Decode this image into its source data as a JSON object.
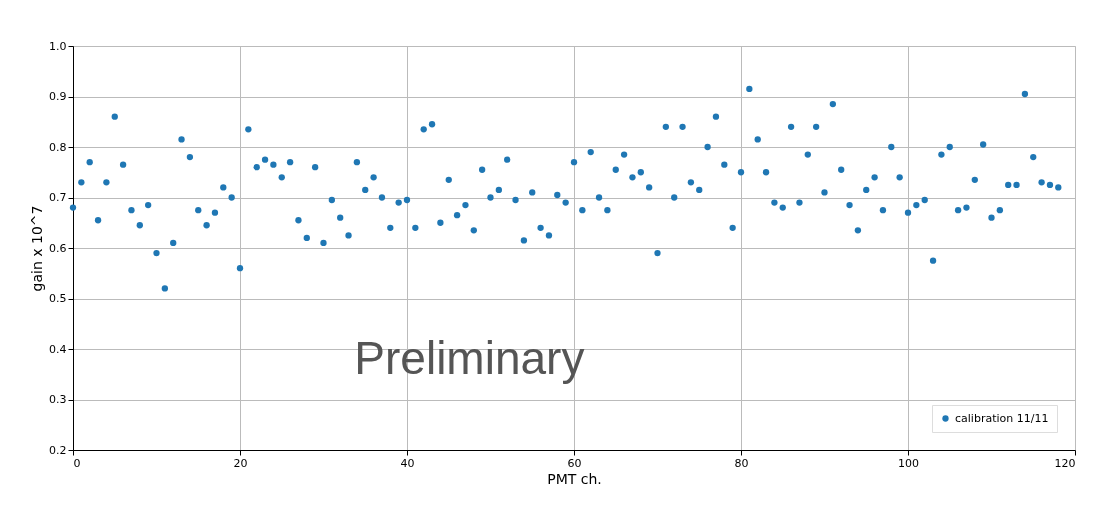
{
  "chart_data": {
    "type": "scatter",
    "xlabel": "PMT ch.",
    "ylabel": "gain x 10^7",
    "x": [
      0,
      1,
      2,
      3,
      4,
      5,
      6,
      7,
      8,
      9,
      10,
      11,
      12,
      13,
      14,
      15,
      16,
      17,
      18,
      19,
      20,
      21,
      22,
      23,
      24,
      25,
      26,
      27,
      28,
      29,
      30,
      31,
      32,
      33,
      34,
      35,
      36,
      37,
      38,
      39,
      40,
      41,
      42,
      43,
      44,
      45,
      46,
      47,
      48,
      49,
      50,
      51,
      52,
      53,
      54,
      55,
      56,
      57,
      58,
      59,
      60,
      61,
      62,
      63,
      64,
      65,
      66,
      67,
      68,
      69,
      70,
      71,
      72,
      73,
      74,
      75,
      76,
      77,
      78,
      79,
      80,
      81,
      82,
      83,
      84,
      85,
      86,
      87,
      88,
      89,
      90,
      91,
      92,
      93,
      94,
      95,
      96,
      97,
      98,
      99,
      100,
      101,
      102,
      103,
      104,
      105,
      106,
      107,
      108,
      109,
      110,
      111,
      112,
      113,
      114,
      115,
      116,
      117,
      118
    ],
    "series": [
      {
        "name": "calibration 11/11",
        "color": "#1f77b4",
        "values": [
          0.68,
          0.73,
          0.77,
          0.655,
          0.73,
          0.86,
          0.765,
          0.675,
          0.645,
          0.685,
          0.59,
          0.52,
          0.61,
          0.815,
          0.78,
          0.675,
          0.645,
          0.67,
          0.72,
          0.7,
          0.56,
          0.835,
          0.76,
          0.775,
          0.765,
          0.74,
          0.77,
          0.655,
          0.62,
          0.76,
          0.61,
          0.695,
          0.66,
          0.625,
          0.77,
          0.715,
          0.74,
          0.7,
          0.64,
          0.69,
          0.695,
          0.64,
          0.835,
          0.845,
          0.65,
          0.735,
          0.665,
          0.685,
          0.635,
          0.755,
          0.7,
          0.715,
          0.775,
          0.695,
          0.615,
          0.71,
          0.64,
          0.625,
          0.705,
          0.69,
          0.77,
          0.675,
          0.79,
          0.7,
          0.675,
          0.755,
          0.785,
          0.74,
          0.75,
          0.72,
          0.59,
          0.84,
          0.7,
          0.84,
          0.73,
          0.715,
          0.8,
          0.86,
          0.765,
          0.64,
          0.75,
          0.915,
          0.815,
          0.75,
          0.69,
          0.68,
          0.84,
          0.69,
          0.785,
          0.84,
          0.71,
          0.885,
          0.755,
          0.685,
          0.635,
          0.715,
          0.74,
          0.675,
          0.8,
          0.74,
          0.67,
          0.685,
          0.695,
          0.575,
          0.785,
          0.8,
          0.675,
          0.68,
          0.735,
          0.805,
          0.66,
          0.675,
          0.725,
          0.725,
          0.905,
          0.78,
          0.73,
          0.725,
          0.72
        ]
      }
    ],
    "xlim": [
      0,
      120
    ],
    "xticks": [
      0,
      20,
      40,
      60,
      80,
      100,
      120
    ],
    "ylim": [
      0.2,
      1.0
    ],
    "yticks": [
      {
        "value": 0.2,
        "label": "0.2"
      },
      {
        "value": 0.3,
        "label": "0.3"
      },
      {
        "value": 0.4,
        "label": "0.4"
      },
      {
        "value": 0.5,
        "label": "0.5"
      },
      {
        "value": 0.6,
        "label": "0.6"
      },
      {
        "value": 0.7,
        "label": "0.7"
      },
      {
        "value": 0.8,
        "label": "0.8"
      },
      {
        "value": 0.9,
        "label": "0.9"
      },
      {
        "value": 1.0,
        "label": "1.0"
      }
    ],
    "grid": true,
    "legend": "bottom right",
    "marker": "circle",
    "annotations": [
      "Preliminary"
    ]
  }
}
